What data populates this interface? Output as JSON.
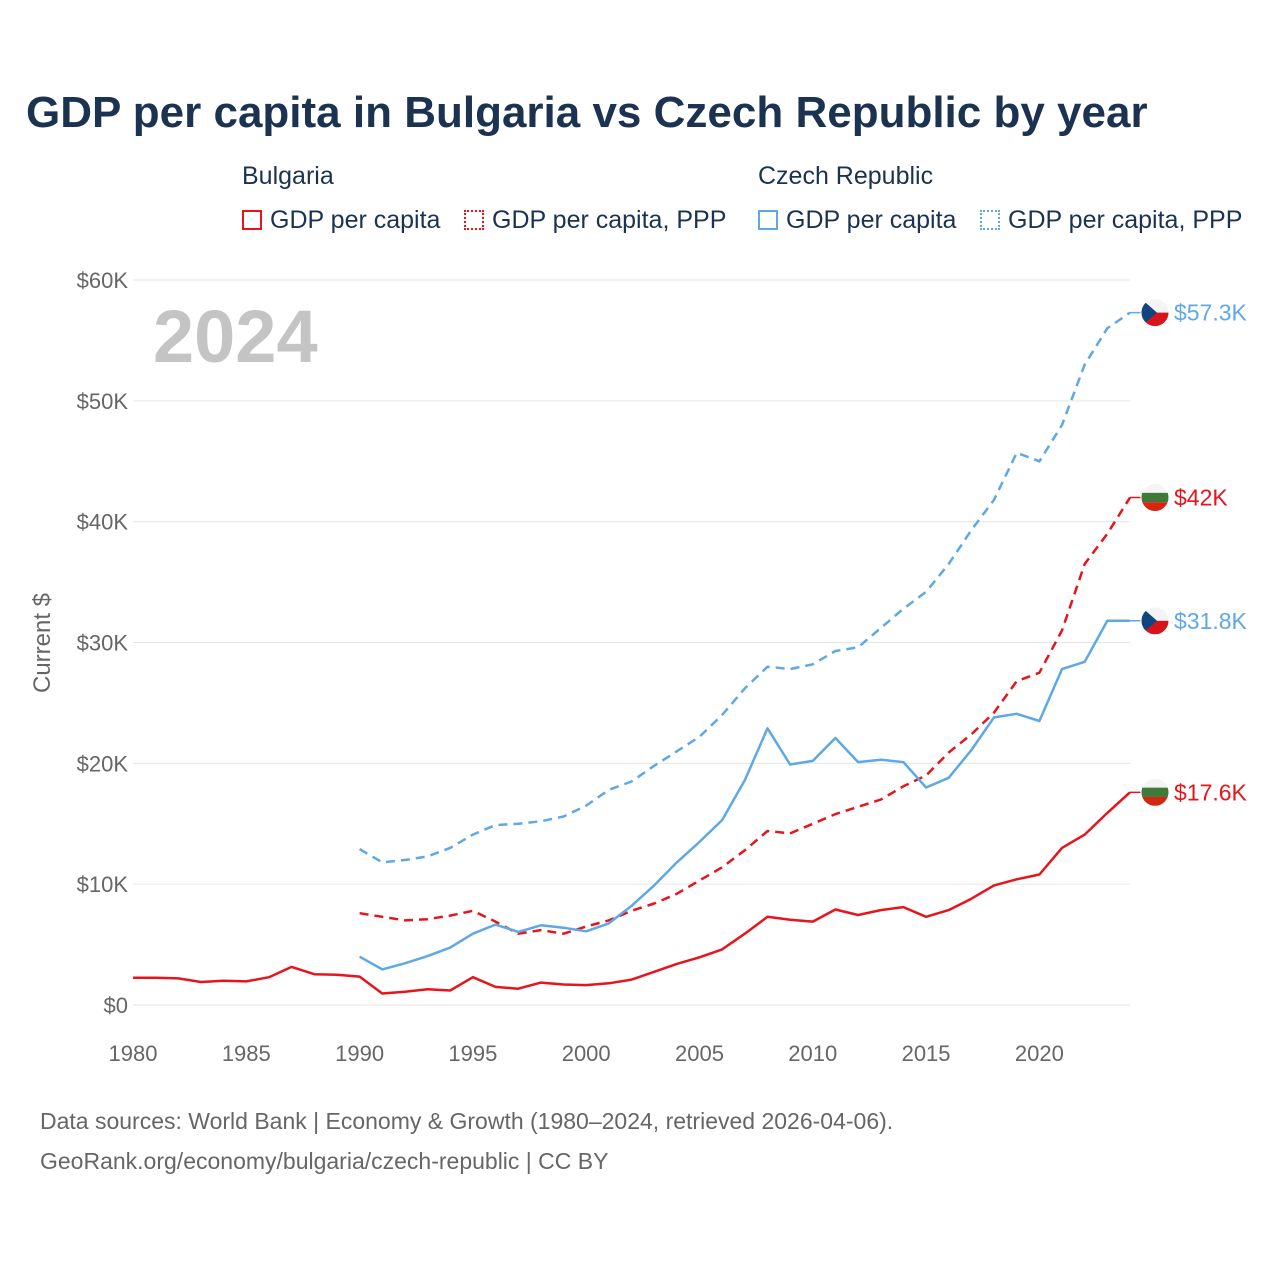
{
  "title": "GDP per capita in Bulgaria vs Czech Republic by year",
  "colors": {
    "bulgaria": "#e8141b",
    "czech": "#5ea8e6",
    "text": "#1b3351",
    "muted": "#666666",
    "grid": "#e6e6e6"
  },
  "legend": {
    "bulgaria": {
      "title": "Bulgaria",
      "items": [
        "GDP per capita",
        "GDP per capita, PPP"
      ]
    },
    "czech": {
      "title": "Czech Republic",
      "items": [
        "GDP per capita",
        "GDP per capita, PPP"
      ]
    }
  },
  "source_lines": [
    "Data sources: World Bank | Economy & Growth (1980–2024, retrieved 2026-04-06).",
    "GeoRank.org/economy/bulgaria/czech-republic | CC BY"
  ],
  "chart_data": {
    "type": "line",
    "title": "GDP per capita in Bulgaria vs Czech Republic by year",
    "year_label": "2024",
    "ylabel": "Current $",
    "xlabel": "",
    "xlim": [
      1980,
      2024
    ],
    "ylim": [
      0,
      60000
    ],
    "x_ticks": [
      "1980",
      "1985",
      "1990",
      "1995",
      "2000",
      "2005",
      "2010",
      "2015",
      "2020"
    ],
    "y_ticks": [
      "$0",
      "$10K",
      "$20K",
      "$30K",
      "$40K",
      "$50K",
      "$60K"
    ],
    "grid": true,
    "series": [
      {
        "name": "Bulgaria GDP per capita",
        "country": "Bulgaria",
        "style": "solid",
        "color": "#e8141b",
        "end_label": "$17.6K",
        "flag": "bulgaria-flag-icon",
        "start_year": 1980,
        "values": [
          2250,
          2250,
          2200,
          1900,
          2000,
          1950,
          2300,
          3150,
          2550,
          2500,
          2350,
          950,
          1100,
          1300,
          1200,
          2300,
          1500,
          1350,
          1850,
          1700,
          1650,
          1800,
          2100,
          2750,
          3400,
          3950,
          4600,
          5900,
          7300,
          7050,
          6900,
          7900,
          7450,
          7850,
          8100,
          7300,
          7850,
          8800,
          9900,
          10400,
          10800,
          13000,
          14100,
          15900,
          17600
        ]
      },
      {
        "name": "Bulgaria GDP per capita, PPP",
        "country": "Bulgaria",
        "style": "dashed",
        "color": "#e8141b",
        "end_label": "$42K",
        "flag": "bulgaria-flag-icon",
        "start_year": 1990,
        "values": [
          7600,
          7300,
          7000,
          7100,
          7400,
          7800,
          6900,
          5900,
          6200,
          5900,
          6500,
          7000,
          7800,
          8400,
          9200,
          10300,
          11400,
          12800,
          14400,
          14200,
          15000,
          15800,
          16400,
          17000,
          18100,
          19000,
          20900,
          22400,
          24200,
          26800,
          27500,
          31000,
          36500,
          39000,
          42000
        ]
      },
      {
        "name": "Czech Republic GDP per capita",
        "country": "Czech Republic",
        "style": "solid",
        "color": "#5ea8e6",
        "end_label": "$31.8K",
        "flag": "czech-flag-icon",
        "start_year": 1990,
        "values": [
          4000,
          2950,
          3450,
          4050,
          4750,
          5900,
          6650,
          6050,
          6600,
          6400,
          6100,
          6750,
          8200,
          9900,
          11800,
          13500,
          15300,
          18600,
          22900,
          19900,
          20200,
          22100,
          20100,
          20300,
          20100,
          18000,
          18800,
          21100,
          23800,
          24100,
          23500,
          27800,
          28400,
          31800,
          31800
        ]
      },
      {
        "name": "Czech Republic GDP per capita, PPP",
        "country": "Czech Republic",
        "style": "dashed",
        "color": "#5ea8e6",
        "end_label": "$57.3K",
        "flag": "czech-flag-icon",
        "start_year": 1990,
        "values": [
          12900,
          11800,
          12000,
          12300,
          13000,
          14100,
          14900,
          15000,
          15200,
          15600,
          16500,
          17800,
          18500,
          19800,
          21000,
          22200,
          24000,
          26200,
          28000,
          27800,
          28200,
          29300,
          29600,
          31200,
          32800,
          34200,
          36500,
          39300,
          41800,
          45700,
          45000,
          48000,
          53000,
          56000,
          57300
        ]
      }
    ]
  }
}
